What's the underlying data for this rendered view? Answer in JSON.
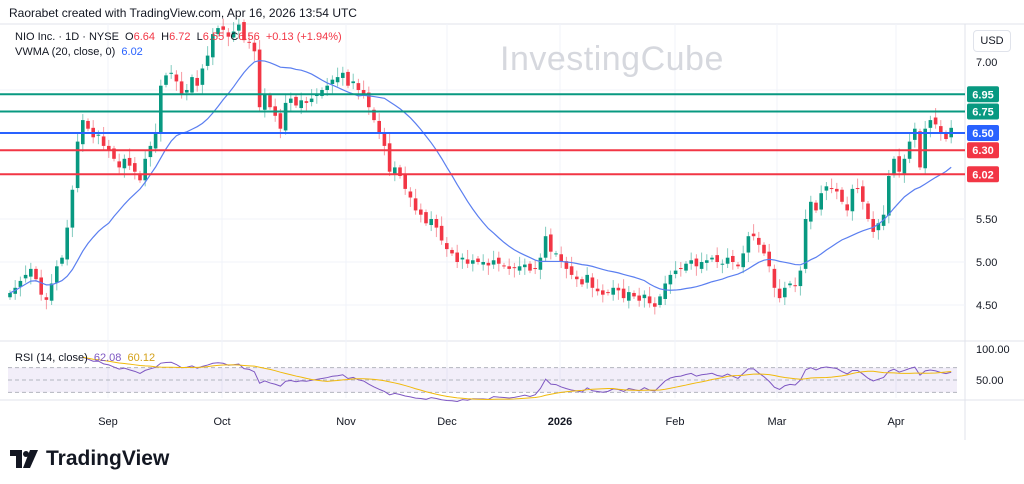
{
  "caption": "Raorabet created with TradingView.com, Apr 16, 2026 13:54 UTC",
  "symbol": {
    "name": "NIO Inc. · 1D · NYSE",
    "o_label": "O",
    "o": "6.64",
    "h_label": "H",
    "h": "6.72",
    "l_label": "L",
    "l": "6.55",
    "c_label": "C",
    "c": "6.56",
    "change": "+0.13 (+1.94%)"
  },
  "vwma": {
    "label": "VWMA (20, close, 0)",
    "value": "6.02",
    "color": "#5b7ff0"
  },
  "rsi": {
    "label": "RSI (14, close)",
    "value": "62.08",
    "ma_value": "60.12",
    "color": "#7e57c2",
    "ma_color": "#f0b90b",
    "levels": [
      30,
      70
    ],
    "axis_labels": [
      "100.00",
      "50.00"
    ]
  },
  "currency": "USD",
  "watermark": "InvestingCube",
  "price_axis": {
    "labels": [
      "7.00",
      "5.50",
      "5.00",
      "4.50"
    ],
    "values": [
      7.0,
      5.5,
      5.0,
      4.5
    ]
  },
  "levels": [
    {
      "price": 6.95,
      "label": "6.95",
      "color": "#089981"
    },
    {
      "price": 6.75,
      "label": "6.75",
      "color": "#089981"
    },
    {
      "price": 6.5,
      "label": "6.50",
      "color": "#2962ff"
    },
    {
      "price": 6.3,
      "label": "6.30",
      "color": "#f23645"
    },
    {
      "price": 6.02,
      "label": "6.02",
      "color": "#f23645"
    }
  ],
  "time_axis": [
    "Sep",
    "Oct",
    "Nov",
    "Dec",
    "2026",
    "Feb",
    "Mar",
    "Apr"
  ],
  "colors": {
    "up": "#089981",
    "down": "#f23645"
  },
  "footer_brand": "TradingView",
  "chart_data": {
    "type": "candlestick",
    "series_label": "NIO Inc. · 1D · NYSE",
    "closes": [
      4.64,
      4.7,
      4.78,
      4.85,
      4.92,
      4.8,
      4.62,
      4.56,
      4.75,
      4.95,
      5.05,
      5.4,
      5.84,
      6.4,
      6.65,
      6.55,
      6.45,
      6.48,
      6.35,
      6.3,
      6.2,
      6.1,
      6.2,
      6.12,
      6.05,
      5.95,
      6.2,
      6.35,
      6.5,
      7.05,
      7.17,
      7.2,
      7.1,
      6.95,
      7.0,
      7.15,
      7.05,
      7.25,
      7.4,
      7.65,
      7.72,
      7.7,
      7.62,
      7.68,
      7.76,
      7.58,
      7.55,
      7.45,
      6.8,
      6.95,
      6.8,
      6.7,
      6.55,
      6.85,
      6.9,
      6.82,
      6.88,
      6.85,
      6.9,
      6.95,
      7.0,
      7.05,
      7.12,
      7.15,
      7.2,
      7.05,
      7.1,
      7.0,
      6.95,
      6.8,
      6.65,
      6.5,
      6.35,
      6.05,
      6.1,
      6.0,
      5.85,
      5.75,
      5.6,
      5.55,
      5.45,
      5.5,
      5.4,
      5.25,
      5.15,
      5.1,
      5.0,
      5.05,
      4.98,
      5.02,
      5.0,
      5.0,
      4.96,
      5.02,
      4.98,
      4.95,
      4.92,
      4.93,
      4.95,
      4.97,
      4.9,
      4.93,
      5.05,
      5.3,
      5.12,
      5.1,
      5.0,
      4.92,
      4.85,
      4.8,
      4.74,
      4.85,
      4.7,
      4.66,
      4.62,
      4.64,
      4.7,
      4.67,
      4.58,
      4.65,
      4.6,
      4.55,
      4.62,
      4.52,
      4.48,
      4.6,
      4.75,
      4.85,
      4.9,
      4.92,
      4.98,
      5.02,
      4.95,
      5.0,
      5.02,
      5.05,
      5.0,
      4.98,
      5.05,
      5.0,
      4.95,
      5.1,
      5.3,
      5.3,
      5.2,
      5.1,
      4.95,
      4.7,
      4.58,
      4.7,
      4.75,
      4.72,
      4.9,
      5.5,
      5.7,
      5.6,
      5.8,
      5.88,
      5.85,
      5.82,
      5.7,
      5.6,
      5.85,
      5.85,
      5.7,
      5.5,
      5.35,
      5.45,
      5.55,
      6.0,
      6.2,
      6.05,
      6.2,
      6.4,
      6.55,
      6.1,
      6.55,
      6.65,
      6.6,
      6.5,
      6.43,
      6.56
    ]
  }
}
